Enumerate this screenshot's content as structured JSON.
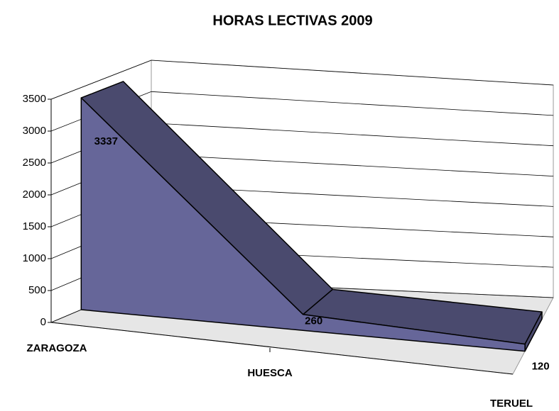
{
  "chart_data": {
    "type": "area3d",
    "title": "HORAS LECTIVAS 2009",
    "categories": [
      "ZARAGOZA",
      "HUESCA",
      "TERUEL"
    ],
    "values": [
      3337,
      260,
      120
    ],
    "color": "#666699",
    "ylim": [
      0,
      3500
    ],
    "yticks": [
      0,
      500,
      1000,
      1500,
      2000,
      2500,
      3000,
      3500
    ],
    "grid": true
  }
}
